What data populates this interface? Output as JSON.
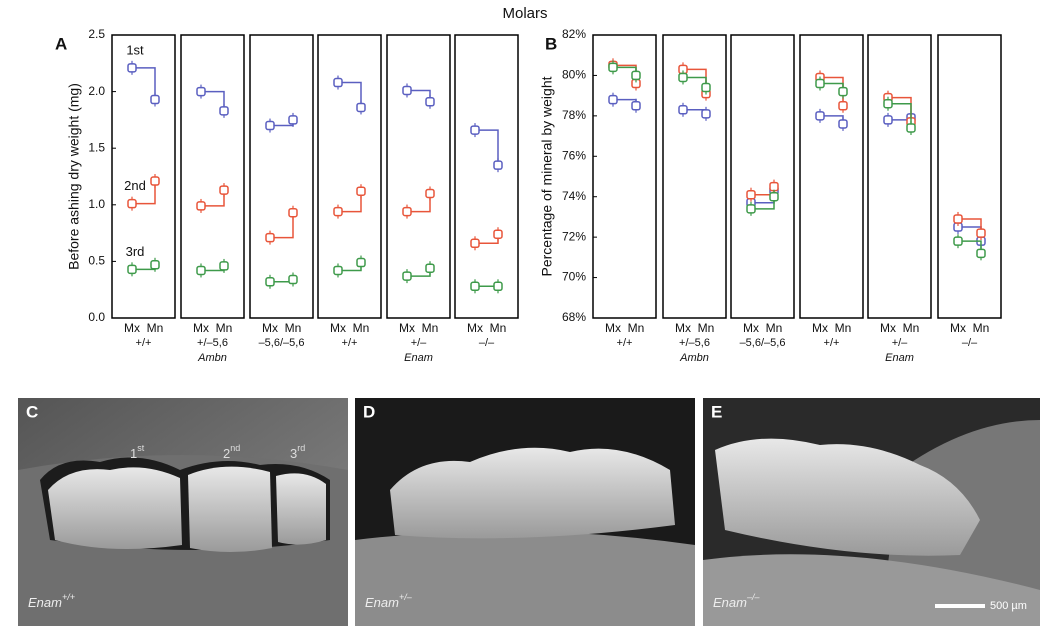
{
  "title": "Molars",
  "chart_data": [
    {
      "type": "step",
      "panel": "A",
      "ylabel": "Before ashing dry weight (mg)",
      "categories": [
        "Mx",
        "Mn"
      ],
      "ylim": [
        0,
        2.5
      ],
      "yticks": [
        {
          "value": 0,
          "label": "0.0"
        },
        0.5,
        {
          "value": 1,
          "label": "1.0"
        },
        1.5,
        {
          "value": 2,
          "label": "2.0"
        },
        2.5
      ],
      "subplots": [
        {
          "genotype": "+/+",
          "series": [
            {
              "name": "1st",
              "color": "#5a5fc0",
              "values": [
                2.21,
                1.93
              ]
            },
            {
              "name": "2nd",
              "color": "#e8553a",
              "values": [
                1.01,
                1.21
              ]
            },
            {
              "name": "3rd",
              "color": "#3e9a4a",
              "values": [
                0.43,
                0.47
              ]
            }
          ]
        },
        {
          "genotype": "+/–5,6",
          "group": "Ambn",
          "series": [
            {
              "color": "#5a5fc0",
              "values": [
                2.0,
                1.83
              ]
            },
            {
              "color": "#e8553a",
              "values": [
                0.99,
                1.13
              ]
            },
            {
              "color": "#3e9a4a",
              "values": [
                0.42,
                0.46
              ]
            }
          ]
        },
        {
          "genotype": "–5,6/–5,6",
          "series": [
            {
              "color": "#5a5fc0",
              "values": [
                1.7,
                1.75
              ]
            },
            {
              "color": "#e8553a",
              "values": [
                0.71,
                0.93
              ]
            },
            {
              "color": "#3e9a4a",
              "values": [
                0.32,
                0.34
              ]
            }
          ]
        },
        {
          "genotype": "+/+",
          "series": [
            {
              "color": "#5a5fc0",
              "values": [
                2.08,
                1.86
              ]
            },
            {
              "color": "#e8553a",
              "values": [
                0.94,
                1.12
              ]
            },
            {
              "color": "#3e9a4a",
              "values": [
                0.42,
                0.49
              ]
            }
          ]
        },
        {
          "genotype": "+/–",
          "group": "Enam",
          "series": [
            {
              "color": "#5a5fc0",
              "values": [
                2.01,
                1.91
              ]
            },
            {
              "color": "#e8553a",
              "values": [
                0.94,
                1.1
              ]
            },
            {
              "color": "#3e9a4a",
              "values": [
                0.37,
                0.44
              ]
            }
          ]
        },
        {
          "genotype": "–/–",
          "series": [
            {
              "color": "#5a5fc0",
              "values": [
                1.66,
                1.35
              ]
            },
            {
              "color": "#e8553a",
              "values": [
                0.66,
                0.74
              ]
            },
            {
              "color": "#3e9a4a",
              "values": [
                0.28,
                0.28
              ]
            }
          ]
        }
      ]
    },
    {
      "type": "step",
      "panel": "B",
      "ylabel": "Percentage of mineral by weight",
      "categories": [
        "Mx",
        "Mn"
      ],
      "ylim": [
        68,
        82
      ],
      "yticks": [
        {
          "value": 68,
          "label": "68%"
        },
        {
          "value": 70,
          "label": "70%"
        },
        {
          "value": 72,
          "label": "72%"
        },
        {
          "value": 74,
          "label": "74%"
        },
        {
          "value": 76,
          "label": "76%"
        },
        {
          "value": 78,
          "label": "78%"
        },
        {
          "value": 80,
          "label": "80%"
        },
        {
          "value": 82,
          "label": "82%"
        }
      ],
      "subplots": [
        {
          "genotype": "+/+",
          "series": [
            {
              "color": "#5a5fc0",
              "values": [
                78.8,
                78.5
              ]
            },
            {
              "color": "#e8553a",
              "values": [
                80.5,
                79.6
              ]
            },
            {
              "color": "#3e9a4a",
              "values": [
                80.4,
                80.0
              ]
            }
          ]
        },
        {
          "genotype": "+/–5,6",
          "group": "Ambn",
          "series": [
            {
              "color": "#5a5fc0",
              "values": [
                78.3,
                78.1
              ]
            },
            {
              "color": "#e8553a",
              "values": [
                80.3,
                79.1
              ]
            },
            {
              "color": "#3e9a4a",
              "values": [
                79.9,
                79.4
              ]
            }
          ]
        },
        {
          "genotype": "–5,6/–5,6",
          "series": [
            {
              "color": "#5a5fc0",
              "values": [
                73.7,
                74.3
              ]
            },
            {
              "color": "#e8553a",
              "values": [
                74.1,
                74.5
              ]
            },
            {
              "color": "#3e9a4a",
              "values": [
                73.4,
                74.0
              ]
            }
          ]
        },
        {
          "genotype": "+/+",
          "series": [
            {
              "color": "#5a5fc0",
              "values": [
                78.0,
                77.6
              ]
            },
            {
              "color": "#e8553a",
              "values": [
                79.9,
                78.5
              ]
            },
            {
              "color": "#3e9a4a",
              "values": [
                79.6,
                79.2
              ]
            }
          ]
        },
        {
          "genotype": "+/–",
          "group": "Enam",
          "series": [
            {
              "color": "#5a5fc0",
              "values": [
                77.8,
                77.9
              ]
            },
            {
              "color": "#e8553a",
              "values": [
                78.9,
                77.7
              ]
            },
            {
              "color": "#3e9a4a",
              "values": [
                78.6,
                77.4
              ]
            }
          ]
        },
        {
          "genotype": "–/–",
          "series": [
            {
              "color": "#5a5fc0",
              "values": [
                72.5,
                71.8
              ]
            },
            {
              "color": "#e8553a",
              "values": [
                72.9,
                72.2
              ]
            },
            {
              "color": "#3e9a4a",
              "values": [
                71.8,
                71.2
              ]
            }
          ]
        }
      ]
    }
  ],
  "images": [
    {
      "letter": "C",
      "caption": "Enam",
      "superscript": "+/+",
      "teeth": [
        {
          "base": "1",
          "sup": "st"
        },
        {
          "base": "2",
          "sup": "nd"
        },
        {
          "base": "3",
          "sup": "rd"
        }
      ]
    },
    {
      "letter": "D",
      "caption": "Enam",
      "superscript": "+/–"
    },
    {
      "letter": "E",
      "caption": "Enam",
      "superscript": "–/–",
      "scale": "500 µm"
    }
  ]
}
